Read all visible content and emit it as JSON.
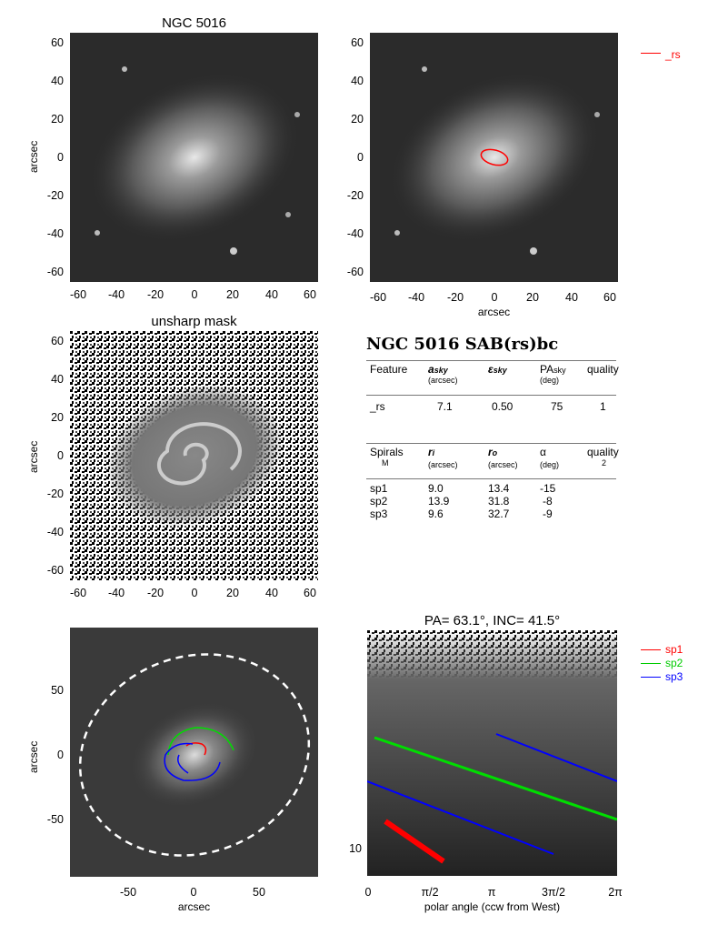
{
  "panels": {
    "p1": {
      "title": "NGC 5016",
      "ylabel": "arcsec",
      "yticks": [
        "60",
        "40",
        "20",
        "0",
        "-20",
        "-40",
        "-60"
      ],
      "xticks": [
        "-60",
        "-40",
        "-20",
        "0",
        "20",
        "40",
        "60"
      ]
    },
    "p2": {
      "xlabel": "arcsec",
      "yticks": [
        "60",
        "40",
        "20",
        "0",
        "-20",
        "-40",
        "-60"
      ],
      "xticks": [
        "-60",
        "-40",
        "-20",
        "0",
        "20",
        "40",
        "60"
      ],
      "legend": "_rs",
      "legend_color": "#ff0000"
    },
    "p3": {
      "title": "unsharp mask",
      "ylabel": "arcsec",
      "yticks": [
        "60",
        "40",
        "20",
        "0",
        "-20",
        "-40",
        "-60"
      ],
      "xticks": [
        "-60",
        "-40",
        "-20",
        "0",
        "20",
        "40",
        "60"
      ]
    },
    "p5": {
      "ylabel": "arcsec",
      "xlabel": "arcsec",
      "yticks": [
        "50",
        "0",
        "-50"
      ],
      "xticks": [
        "-50",
        "0",
        "50"
      ]
    },
    "p6": {
      "title": "PA=  63.1°, INC=  41.5°",
      "xlabel": "polar angle (ccw from West)",
      "ytick": "10",
      "xticks": [
        "0",
        "π/2",
        "π",
        "3π/2",
        "2π"
      ],
      "legend": [
        {
          "name": "sp1",
          "color": "#ff0000"
        },
        {
          "name": "sp2",
          "color": "#00cc00"
        },
        {
          "name": "sp3",
          "color": "#0000ff"
        }
      ]
    }
  },
  "table": {
    "heading": "NGC 5016  SAB(rs)bc",
    "features_header": {
      "c1": "Feature",
      "c2": "a",
      "c2sub": "sky",
      "c2unit": "(arcsec)",
      "c3": "ε",
      "c3sub": "sky",
      "c4": "PA",
      "c4sub": "sky",
      "c4unit": "(deg)",
      "c5": "quality"
    },
    "features": [
      {
        "name": "_rs",
        "a": "7.1",
        "eps": "0.50",
        "pa": "75",
        "quality": "1"
      }
    ],
    "spirals_header": {
      "c1": "Spirals",
      "c1b": "M",
      "c2": "r",
      "c2sub": "i",
      "c2unit": "(arcsec)",
      "c3": "r",
      "c3sub": "o",
      "c3unit": "(arcsec)",
      "c4": "α",
      "c4unit": "(deg)",
      "c5": "quality",
      "c5b": "2"
    },
    "spirals": [
      {
        "name": "sp1",
        "ri": "9.0",
        "ro": "13.4",
        "alpha": "-15"
      },
      {
        "name": "sp2",
        "ri": "13.9",
        "ro": "31.8",
        "alpha": "-8"
      },
      {
        "name": "sp3",
        "ri": "9.6",
        "ro": "32.7",
        "alpha": "-9"
      }
    ]
  },
  "colors": {
    "sp1": "#ff0000",
    "sp2": "#00dd00",
    "sp3": "#0000ff",
    "ellipse": "#ffffff"
  }
}
